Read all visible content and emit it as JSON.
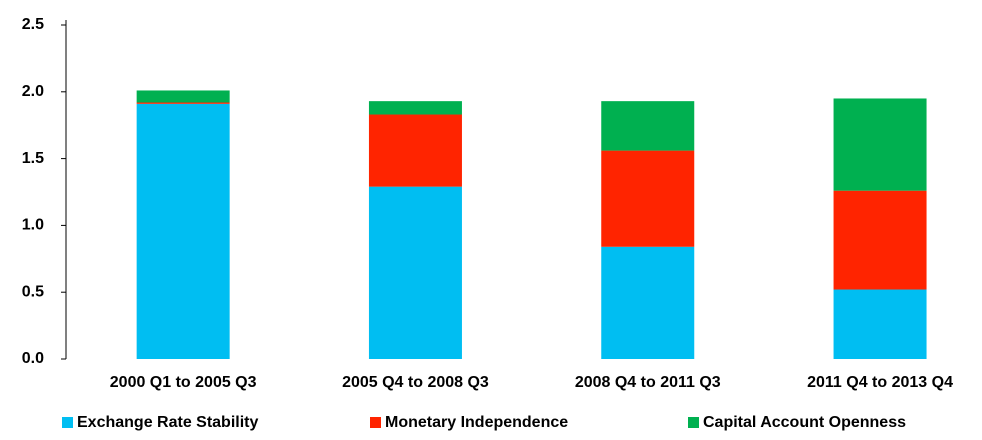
{
  "chart_data": {
    "type": "stacked_bar",
    "categories": [
      "2000 Q1 to 2005 Q3",
      "2005 Q4 to 2008 Q3",
      "2008 Q4 to 2011 Q3",
      "2011 Q4 to 2013 Q4"
    ],
    "series": [
      {
        "name": "Exchange Rate Stability",
        "color": "#00bef2",
        "values": [
          1.91,
          1.29,
          0.84,
          0.52
        ]
      },
      {
        "name": "Monetary Independence",
        "color": "#ff2400",
        "values": [
          0.01,
          0.54,
          0.72,
          0.74
        ]
      },
      {
        "name": "Capital Account Openness",
        "color": "#00b050",
        "values": [
          0.09,
          0.1,
          0.37,
          0.69
        ]
      }
    ],
    "ylim": [
      0,
      2.5
    ],
    "yticks": [
      {
        "value": 0,
        "label": "0.0"
      },
      0.5,
      {
        "value": 1,
        "label": "1.0"
      },
      1.5,
      {
        "value": 2,
        "label": "2.0"
      },
      2.5
    ],
    "grid": false,
    "legend": "bottom"
  }
}
